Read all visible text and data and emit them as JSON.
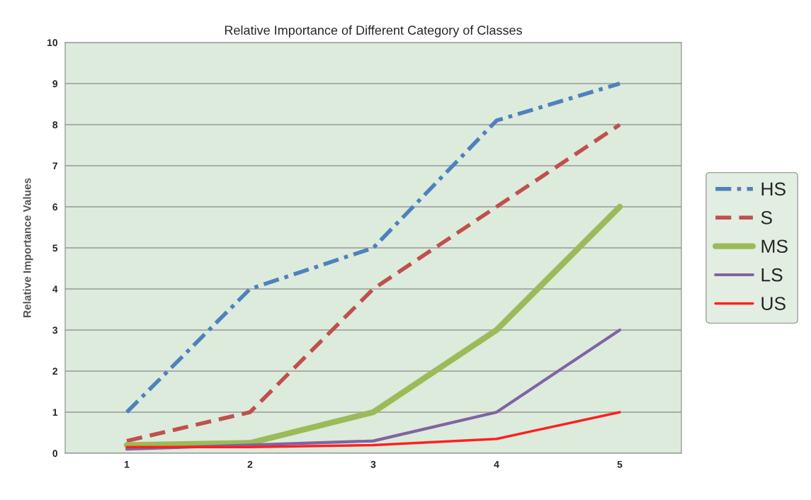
{
  "chart_data": {
    "type": "line",
    "title": "Relative Importance of Different Category of Classes",
    "ylabel": "Relative Importance Values",
    "categories": [
      "1",
      "2",
      "3",
      "4",
      "5"
    ],
    "series": [
      {
        "name": "HS",
        "color": "#4f81bd",
        "line_style": "dashdot",
        "values": [
          1,
          4,
          5,
          8.1,
          9
        ]
      },
      {
        "name": "S",
        "color": "#c0504d",
        "line_style": "dashed",
        "values": [
          0.3,
          1,
          4,
          6,
          8
        ]
      },
      {
        "name": "MS",
        "color": "#9bbb59",
        "line_style": "solid",
        "values": [
          0.2,
          0.25,
          1,
          3,
          6
        ]
      },
      {
        "name": "LS",
        "color": "#8064a2",
        "line_style": "solid",
        "values": [
          0.1,
          0.2,
          0.3,
          1,
          3
        ]
      },
      {
        "name": "US",
        "color": "#ff2020",
        "line_style": "solid",
        "values": [
          0.15,
          0.15,
          0.2,
          0.35,
          1
        ]
      }
    ],
    "ylim": [
      0,
      10
    ],
    "yticks": [
      0,
      1,
      2,
      3,
      4,
      5,
      6,
      7,
      8,
      9,
      10
    ],
    "grid": "y",
    "legend": "right",
    "marker": "none"
  }
}
